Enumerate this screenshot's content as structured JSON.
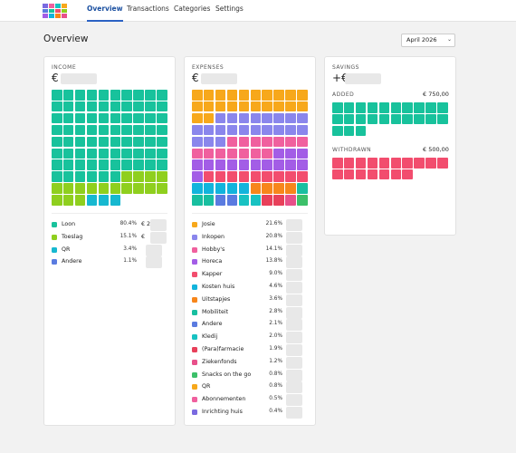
{
  "nav": {
    "tabs": [
      "Overview",
      "Transactions",
      "Categories",
      "Settings"
    ]
  },
  "page": {
    "title": "Overview",
    "month": "April 2026"
  },
  "income": {
    "label": "INCOME",
    "amount_prefix": "€",
    "items": [
      {
        "name": "Loon",
        "pct": "80.4%",
        "amount": "€ 2",
        "color": "#18c29c"
      },
      {
        "name": "Toeslag",
        "pct": "15.1%",
        "amount": "€",
        "color": "#8fcf1e"
      },
      {
        "name": "QR",
        "pct": "3.4%",
        "color": "#17b8d0"
      },
      {
        "name": "Andere",
        "pct": "1.1%",
        "color": "#5a7be0"
      }
    ]
  },
  "expenses": {
    "label": "EXPENSES",
    "amount_prefix": "€",
    "items": [
      {
        "name": "Josie",
        "pct": "21.6%",
        "color": "#f7a81b"
      },
      {
        "name": "Inkopen",
        "pct": "20.8%",
        "color": "#8a86ec"
      },
      {
        "name": "Hobby's",
        "pct": "14.1%",
        "color": "#f0609e"
      },
      {
        "name": "Horeca",
        "pct": "13.8%",
        "color": "#a35de6"
      },
      {
        "name": "Kapper",
        "pct": "9.0%",
        "color": "#f24d6e"
      },
      {
        "name": "Kosten huis",
        "pct": "4.6%",
        "color": "#12b4dc"
      },
      {
        "name": "Uitstapjes",
        "pct": "3.6%",
        "color": "#f7861b"
      },
      {
        "name": "Mobiliteit",
        "pct": "2.8%",
        "color": "#18bfa0"
      },
      {
        "name": "Andere",
        "pct": "2.1%",
        "color": "#5a7be0"
      },
      {
        "name": "Kledij",
        "pct": "2.0%",
        "color": "#18c2c2"
      },
      {
        "name": "(Para)farmacie",
        "pct": "1.9%",
        "color": "#e8405a"
      },
      {
        "name": "Ziekenfonds",
        "pct": "1.2%",
        "color": "#e8508a"
      },
      {
        "name": "Snacks on the go",
        "pct": "0.8%",
        "color": "#3cc06a"
      },
      {
        "name": "QR",
        "pct": "0.8%",
        "color": "#f7a81b"
      },
      {
        "name": "Abonnementen",
        "pct": "0.5%",
        "color": "#f0609e"
      },
      {
        "name": "Inrichting huis",
        "pct": "0.4%",
        "color": "#7a6ae0"
      }
    ]
  },
  "savings": {
    "label": "SAVINGS",
    "amount_prefix": "+€",
    "added": {
      "label": "ADDED",
      "amount": "€ 750,00",
      "color": "#18c29c"
    },
    "withdrawn": {
      "label": "WITHDRAWN",
      "amount": "€ 500,00",
      "color": "#f24d6e"
    }
  }
}
